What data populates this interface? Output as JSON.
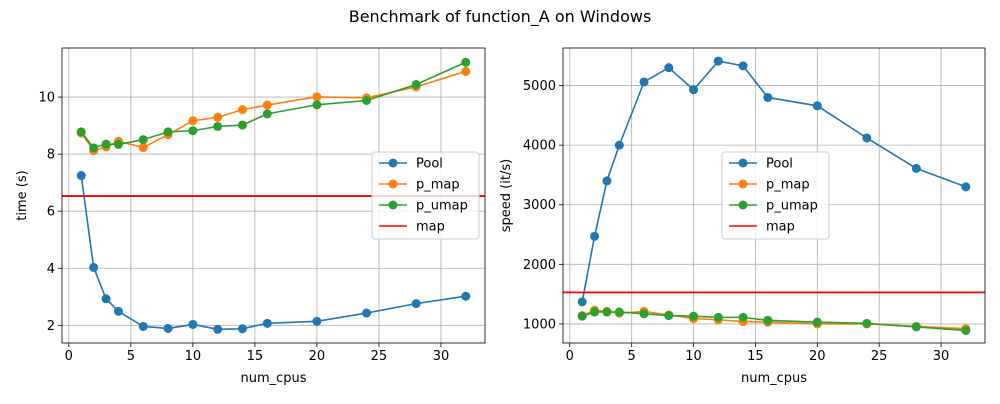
{
  "figure": {
    "suptitle": "Benchmark of function_A on Windows"
  },
  "chart_data": [
    {
      "type": "line",
      "title": "",
      "xlabel": "num_cpus",
      "ylabel": "time (s)",
      "xlim": [
        -0.55,
        33.55
      ],
      "ylim": [
        1.38,
        11.72
      ],
      "xticks": [
        0,
        5,
        10,
        15,
        20,
        25,
        30
      ],
      "yticks": [
        2,
        4,
        6,
        8,
        10
      ],
      "grid": true,
      "legend_position": "center-right",
      "x": [
        1,
        2,
        3,
        4,
        6,
        8,
        10,
        12,
        14,
        16,
        20,
        24,
        28,
        32
      ],
      "series": [
        {
          "name": "Pool",
          "color": "#1f77b4",
          "values": [
            7.25,
            4.03,
            2.93,
            2.49,
            1.96,
            1.89,
            2.03,
            1.86,
            1.88,
            2.07,
            2.14,
            2.43,
            2.76,
            3.02
          ]
        },
        {
          "name": "p_map",
          "color": "#ff7f0e",
          "values": [
            8.74,
            8.12,
            8.25,
            8.45,
            8.23,
            8.68,
            9.17,
            9.29,
            9.56,
            9.72,
            10.01,
            9.97,
            10.36,
            10.9
          ]
        },
        {
          "name": "p_umap",
          "color": "#2ca02c",
          "values": [
            8.78,
            8.22,
            8.35,
            8.34,
            8.51,
            8.78,
            8.82,
            8.97,
            9.02,
            9.41,
            9.73,
            9.88,
            10.44,
            11.22
          ]
        },
        {
          "name": "map",
          "color": "#ff0000",
          "type": "hline",
          "value": 6.53
        }
      ]
    },
    {
      "type": "line",
      "title": "",
      "xlabel": "num_cpus",
      "ylabel": "speed (it/s)",
      "xlim": [
        -0.55,
        33.55
      ],
      "ylim": [
        680,
        5630
      ],
      "xticks": [
        0,
        5,
        10,
        15,
        20,
        25,
        30
      ],
      "yticks": [
        1000,
        2000,
        3000,
        4000,
        5000
      ],
      "grid": true,
      "legend_position": "center",
      "x": [
        1,
        2,
        3,
        4,
        6,
        8,
        10,
        12,
        14,
        16,
        20,
        24,
        28,
        32
      ],
      "series": [
        {
          "name": "Pool",
          "color": "#1f77b4",
          "values": [
            1370,
            2470,
            3400,
            4000,
            5060,
            5300,
            4930,
            5410,
            5330,
            4800,
            4660,
            4120,
            3610,
            3300
          ]
        },
        {
          "name": "p_map",
          "color": "#ff7f0e",
          "values": [
            1140,
            1230,
            1210,
            1180,
            1210,
            1150,
            1090,
            1070,
            1040,
            1030,
            1000,
            1000,
            960,
            920
          ]
        },
        {
          "name": "p_umap",
          "color": "#2ca02c",
          "values": [
            1130,
            1200,
            1200,
            1200,
            1170,
            1140,
            1130,
            1110,
            1110,
            1060,
            1030,
            1010,
            950,
            890
          ]
        },
        {
          "name": "map",
          "color": "#ff0000",
          "type": "hline",
          "value": 1530
        }
      ]
    }
  ]
}
